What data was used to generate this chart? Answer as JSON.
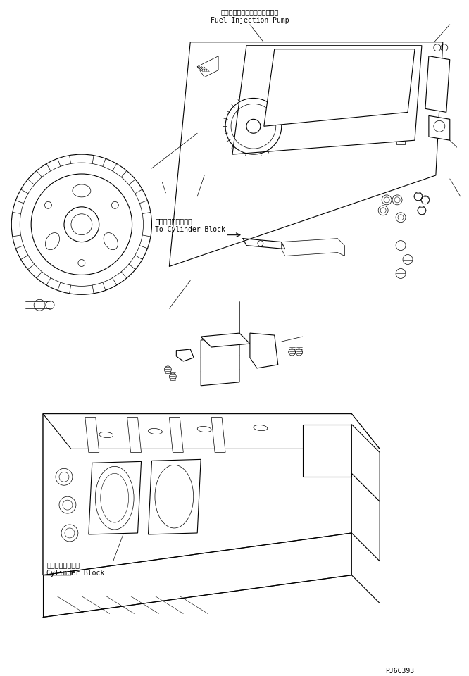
{
  "background_color": "#ffffff",
  "line_color": "#000000",
  "fig_width": 6.66,
  "fig_height": 9.6,
  "dpi": 100,
  "label_fuel_jp": "フェルインジェクションポンプ",
  "label_fuel_en": "Fuel Injection Pump",
  "label_cylinder_jp": "シリンダブロックヘ",
  "label_cylinder_en": "To Cylinder Block",
  "label_block_jp": "シリンダブロック",
  "label_block_en": "Cylinder Block",
  "part_number": "PJ6C393",
  "font_size_label": 7,
  "font_size_part": 7,
  "line_width": 0.8,
  "thin_line": 0.5
}
